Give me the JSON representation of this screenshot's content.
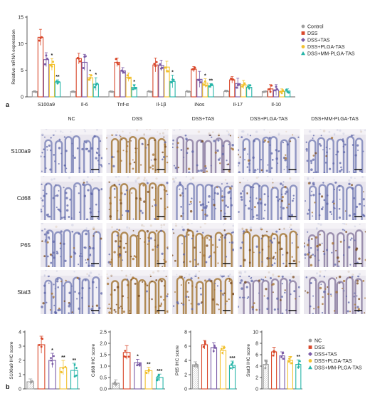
{
  "colors": {
    "Control": "#9e9e9e",
    "NC": "#9e9e9e",
    "DSS": "#d9482b",
    "DSS+TAS": "#7b5ba6",
    "DSS+PLGA-TAS": "#f2c12e",
    "DSS+MM-PLGA-TAS": "#26b5a8"
  },
  "panel_a_letter": "a",
  "panel_b_letter": "b",
  "ihc": {
    "columns": [
      "NC",
      "DSS",
      "DSS+TAS",
      "DSS+PLGA-TAS",
      "DSS+MM-PLGA-TAS"
    ],
    "rows": [
      "S100a9",
      "Cd68",
      "P65",
      "Stat3"
    ]
  },
  "chart_data": [
    {
      "id": "mrna",
      "type": "bar",
      "ylabel": "Relative mRNA expression",
      "ylim": [
        0,
        15
      ],
      "yticks": [
        0,
        5,
        10,
        15
      ],
      "categories": [
        "S100a9",
        "Il-6",
        "Tnf-α",
        "Il-1β",
        "iNos",
        "Il-17",
        "Il-10"
      ],
      "legend": {
        "placement": "top-right"
      },
      "series": [
        {
          "name": "Control",
          "values": [
            1.0,
            1.0,
            1.0,
            1.0,
            1.0,
            1.0,
            1.0
          ],
          "err": [
            0.15,
            0.1,
            0.1,
            0.1,
            0.1,
            0.2,
            0.1
          ]
        },
        {
          "name": "DSS",
          "values": [
            11.2,
            7.2,
            6.5,
            6.0,
            5.2,
            3.2,
            1.5
          ],
          "err": [
            1.5,
            1.0,
            0.8,
            1.3,
            0.5,
            0.6,
            0.8
          ]
        },
        {
          "name": "DSS+TAS",
          "values": [
            7.0,
            6.5,
            4.9,
            5.9,
            3.3,
            2.5,
            1.3
          ],
          "err": [
            1.3,
            1.5,
            0.6,
            1.0,
            1.5,
            1.0,
            1.0
          ]
        },
        {
          "name": "DSS+PLGA-TAS",
          "values": [
            6.1,
            3.6,
            3.7,
            5.6,
            2.6,
            2.3,
            1.0
          ],
          "err": [
            1.1,
            0.6,
            0.8,
            1.1,
            0.8,
            0.8,
            0.5
          ]
        },
        {
          "name": "DSS+MM-PLGA-TAS",
          "values": [
            2.8,
            2.4,
            1.8,
            2.9,
            2.1,
            1.8,
            1.1
          ],
          "err": [
            0.4,
            1.2,
            0.5,
            1.2,
            0.4,
            0.5,
            0.4
          ]
        }
      ],
      "marks": [
        [
          "",
          "",
          "",
          "",
          "",
          "",
          ""
        ],
        [
          "",
          "",
          "",
          "",
          "",
          "",
          ""
        ],
        [
          "",
          "",
          "",
          "",
          "",
          "",
          ""
        ],
        [
          "*",
          "*",
          "",
          "",
          "*",
          "",
          ""
        ],
        [
          "**",
          "*",
          "*",
          "*",
          "**",
          "",
          ""
        ]
      ]
    },
    {
      "id": "s100a9",
      "type": "bar",
      "ylabel": "S100a9 IHC score",
      "ylim": [
        0,
        4
      ],
      "yticks": [
        0,
        1,
        2,
        3,
        4
      ],
      "categories": [
        "NC",
        "DSS",
        "DSS+TAS",
        "DSS+PLGA-TAS",
        "DSS+MM-PLGA-TAS"
      ],
      "values": [
        0.5,
        3.1,
        2.0,
        1.5,
        1.3
      ],
      "err": [
        0.2,
        0.6,
        0.5,
        0.5,
        0.5
      ],
      "marks": [
        "",
        "",
        "*",
        "**",
        "**"
      ]
    },
    {
      "id": "cd68",
      "type": "bar",
      "ylabel": "Cd68 IHC score",
      "ylim": [
        0,
        2.5
      ],
      "yticks": [
        0.0,
        0.5,
        1.0,
        1.5,
        2.0,
        2.5
      ],
      "categories": [
        "NC",
        "DSS",
        "DSS+TAS",
        "DSS+PLGA-TAS",
        "DSS+MM-PLGA-TAS"
      ],
      "values": [
        0.25,
        1.6,
        1.15,
        0.8,
        0.5
      ],
      "err": [
        0.15,
        0.3,
        0.15,
        0.15,
        0.15
      ],
      "marks": [
        "",
        "",
        "*",
        "**",
        "***"
      ]
    },
    {
      "id": "p65",
      "type": "bar",
      "ylabel": "P65 IHC score",
      "ylim": [
        0,
        8
      ],
      "yticks": [
        0,
        2,
        4,
        6,
        8
      ],
      "categories": [
        "NC",
        "DSS",
        "DSS+TAS",
        "DSS+PLGA-TAS",
        "DSS+MM-PLGA-TAS"
      ],
      "values": [
        3.4,
        6.2,
        5.8,
        5.4,
        3.3
      ],
      "err": [
        0.4,
        0.6,
        0.7,
        0.6,
        0.6
      ],
      "marks": [
        "",
        "",
        "",
        "",
        "***"
      ]
    },
    {
      "id": "stat3",
      "type": "bar",
      "ylabel": "Stat3 IHC score",
      "ylim": [
        0,
        10
      ],
      "yticks": [
        0,
        2,
        4,
        6,
        8,
        10
      ],
      "categories": [
        "NC",
        "DSS",
        "DSS+TAS",
        "DSS+PLGA-TAS",
        "DSS+MM-PLGA-TAS"
      ],
      "values": [
        4.3,
        6.5,
        5.8,
        5.0,
        4.3
      ],
      "err": [
        0.8,
        0.8,
        0.7,
        0.7,
        0.8
      ],
      "marks": [
        "",
        "",
        "",
        "",
        "**"
      ],
      "legend": {
        "placement": "right"
      }
    }
  ]
}
